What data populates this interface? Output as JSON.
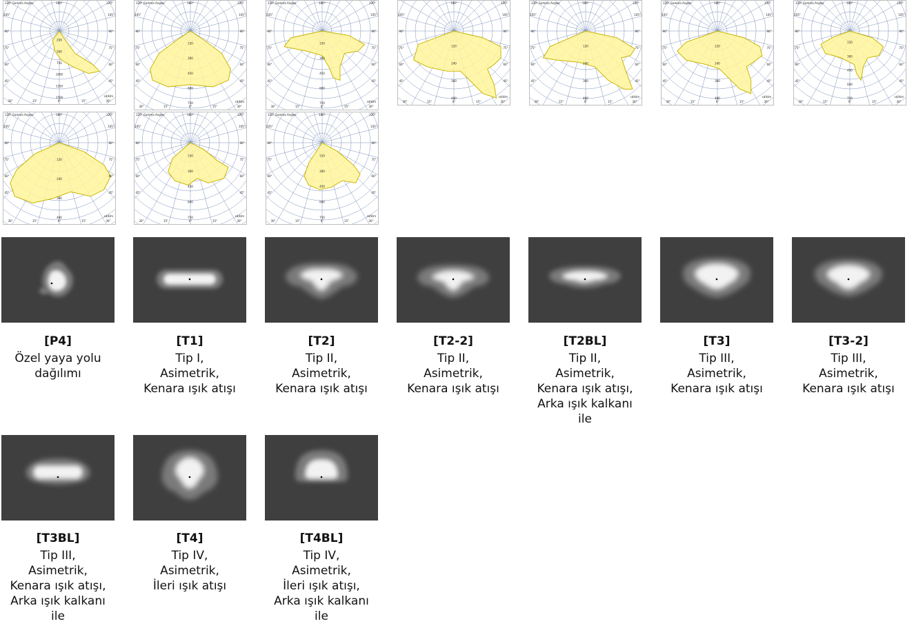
{
  "polar_charts": [
    {
      "note": "120°  Gamma Angles",
      "top_angles": [
        "180°",
        "120°"
      ],
      "side_angles": [
        "105°",
        "90°",
        "75°",
        "60°",
        "45°"
      ],
      "bottom_angles": [
        "30°",
        "15°",
        "0°",
        "15°",
        "30°"
      ],
      "radial_labels": [
        "1500",
        "1250",
        "1000",
        "750",
        "500",
        "250"
      ],
      "unit": "cd/klm"
    },
    {
      "note": "120°  Gamma Angles",
      "top_angles": [
        "180°",
        "120°"
      ],
      "side_angles": [
        "105°",
        "90°",
        "75°",
        "60°",
        "45°"
      ],
      "bottom_angles": [
        "30°",
        "15°",
        "0°",
        "15°",
        "30°"
      ],
      "radial_labels": [
        "750",
        "600",
        "450",
        "300",
        "150"
      ],
      "unit": "cd/klm"
    },
    {
      "note": "120°  Gamma Angles",
      "top_angles": [
        "180°",
        "120°"
      ],
      "side_angles": [
        "105°",
        "90°",
        "75°",
        "60°",
        "45°"
      ],
      "bottom_angles": [
        "30°",
        "15°",
        "0°",
        "15°",
        "30°"
      ],
      "radial_labels": [
        "750",
        "600",
        "450",
        "300",
        "150"
      ],
      "unit": "cd/klm"
    },
    {
      "note": "",
      "top_angles": [
        "180°",
        "120°"
      ],
      "side_angles": [
        "105°",
        "90°",
        "75°",
        "60°",
        "45°"
      ],
      "bottom_angles": [
        "30°",
        "15°",
        "0°",
        "15°",
        "30°"
      ],
      "radial_labels": [
        "480",
        "360",
        "240",
        "120"
      ],
      "unit": "cd/klm"
    },
    {
      "note": "120°  Gamma Angles",
      "top_angles": [
        "180°",
        "120°"
      ],
      "side_angles": [
        "105°",
        "90°",
        "75°",
        "60°",
        "45°"
      ],
      "bottom_angles": [
        "30°",
        "15°",
        "0°",
        "15°",
        "30°"
      ],
      "radial_labels": [
        "480",
        "360",
        "240",
        "120"
      ],
      "unit": "cd/klm"
    },
    {
      "note": "120°  Gamma Angles",
      "top_angles": [
        "180°",
        "120°"
      ],
      "side_angles": [
        "105°",
        "90°",
        "75°",
        "60°",
        "45°"
      ],
      "bottom_angles": [
        "30°",
        "15°",
        "0°",
        "15°",
        "30°"
      ],
      "radial_labels": [
        "480",
        "360",
        "240",
        "120"
      ],
      "unit": "cd/klm"
    },
    {
      "note": "120°  Gamma Angles",
      "top_angles": [
        "180°",
        "120°"
      ],
      "side_angles": [
        "105°",
        "90°",
        "75°",
        "60°",
        "45°"
      ],
      "bottom_angles": [
        "30°",
        "15°",
        "0°",
        "15°",
        "30°"
      ],
      "radial_labels": [
        "750",
        "600",
        "450",
        "300",
        "150"
      ],
      "unit": "cd/klm"
    },
    {
      "note": "120°  Gamma Angles",
      "top_angles": [
        "180°",
        "120°"
      ],
      "side_angles": [
        "105°",
        "90°",
        "75°",
        "60°",
        "45°"
      ],
      "bottom_angles": [
        "30°",
        "15°",
        "0°",
        "15°",
        "30°"
      ],
      "radial_labels": [
        "480",
        "360",
        "240",
        "120"
      ],
      "unit": "cd/klm"
    },
    {
      "note": "120°  Gamma Angles",
      "top_angles": [
        "180°",
        "120°"
      ],
      "side_angles": [
        "105°",
        "90°",
        "75°",
        "60°",
        "45°"
      ],
      "bottom_angles": [
        "30°",
        "15°",
        "0°",
        "15°",
        "30°"
      ],
      "radial_labels": [
        "750",
        "600",
        "450",
        "300",
        "150"
      ],
      "unit": "cd/klm"
    },
    {
      "note": "120°  Gamma Angles",
      "top_angles": [
        "180°",
        "120°"
      ],
      "side_angles": [
        "105°",
        "90°",
        "75°",
        "60°",
        "45°"
      ],
      "bottom_angles": [
        "30°",
        "15°",
        "0°",
        "15°",
        "30°"
      ],
      "radial_labels": [
        "750",
        "600",
        "450",
        "300",
        "150"
      ],
      "unit": "cd/klm"
    }
  ],
  "distributions": [
    {
      "code": "[P4]",
      "lines": [
        "Özel yaya yolu",
        "dağılımı"
      ]
    },
    {
      "code": "[T1]",
      "lines": [
        "Tip I,",
        "Asimetrik,",
        "Kenara ışık atışı"
      ]
    },
    {
      "code": "[T2]",
      "lines": [
        "Tip II,",
        "Asimetrik,",
        "Kenara ışık atışı"
      ]
    },
    {
      "code": "[T2-2]",
      "lines": [
        "Tip II,",
        "Asimetrik,",
        "Kenara ışık atışı"
      ]
    },
    {
      "code": "[T2BL]",
      "lines": [
        "Tip II,",
        "Asimetrik,",
        "Kenara ışık atışı,",
        "Arka ışık kalkanı",
        "ile"
      ]
    },
    {
      "code": "[T3]",
      "lines": [
        "Tip III,",
        "Asimetrik,",
        "Kenara ışık atışı"
      ]
    },
    {
      "code": "[T3-2]",
      "lines": [
        "Tip III,",
        "Asimetrik,",
        "Kenara ışık atışı"
      ]
    },
    {
      "code": "[T3BL]",
      "lines": [
        "Tip III,",
        "Asimetrik,",
        "Kenara ışık atışı,",
        "Arka ışık kalkanı",
        "ile"
      ]
    },
    {
      "code": "[T4]",
      "lines": [
        "Tip IV,",
        "Asimetrik,",
        "İleri ışık atışı"
      ]
    },
    {
      "code": "[T4BL]",
      "lines": [
        "Tip IV,",
        "Asimetrik,",
        "İleri ışık atışı,",
        "Arka ışık kalkanı",
        "ile"
      ]
    }
  ],
  "colors": {
    "polar_fill": "#fff59a",
    "polar_stroke": "#c8b400",
    "polar_grid": "#7a8fb8",
    "tile_bg": "#3f3f3f",
    "glow_outer": "#7a7a7a",
    "glow_inner": "#f2f2f2"
  }
}
